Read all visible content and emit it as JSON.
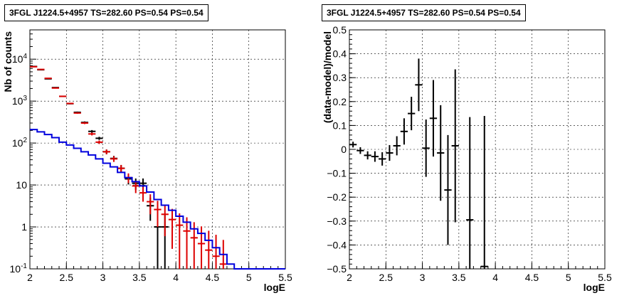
{
  "chart_data": [
    {
      "type": "line",
      "title": "3FGL J1224.5+4957 TS=282.60 PS=0.54 PS=0.54",
      "xlabel": "logE",
      "ylabel": "Nb of counts",
      "xlim": [
        2,
        5.5
      ],
      "ylim": [
        0.1,
        50000
      ],
      "yscale": "log",
      "grid": true,
      "xticks": [
        "2",
        "2.5",
        "3",
        "3.5",
        "4",
        "4.5",
        "5",
        "5.5"
      ],
      "yticks": [
        "10^-1",
        "1",
        "10",
        "10^2",
        "10^3",
        "10^4"
      ],
      "series": [
        {
          "color": "#000000",
          "style": "errorbar",
          "x": [
            2.05,
            2.15,
            2.25,
            2.35,
            2.45,
            2.55,
            2.65,
            2.75,
            2.85,
            2.95,
            3.05,
            3.15,
            3.25,
            3.35,
            3.45,
            3.55,
            3.65,
            3.75,
            3.85,
            3.95,
            4.05,
            4.15,
            4.25,
            4.35,
            4.45,
            4.55,
            4.65
          ],
          "y": [
            6700,
            5600,
            3400,
            2100,
            1300,
            870,
            540,
            310,
            190,
            130,
            62,
            43,
            25,
            14,
            11,
            11,
            3.2,
            1,
            1,
            0,
            0,
            0,
            0,
            0,
            0,
            0,
            0
          ],
          "yerr": [
            82,
            75,
            58,
            46,
            36,
            29,
            23,
            18,
            14,
            11,
            8,
            6.5,
            5,
            3.7,
            3.3,
            3.3,
            1.8,
            1,
            1,
            0,
            0,
            0,
            0,
            0,
            0,
            0,
            0
          ]
        },
        {
          "color": "#dd0000",
          "style": "errorbar",
          "x": [
            2.05,
            2.15,
            2.25,
            2.35,
            2.45,
            2.55,
            2.65,
            2.75,
            2.85,
            2.95,
            3.05,
            3.15,
            3.25,
            3.35,
            3.45,
            3.55,
            3.65,
            3.75,
            3.85,
            3.95,
            4.05,
            4.15,
            4.25,
            4.35,
            4.45,
            4.55,
            4.65
          ],
          "y": [
            6600,
            5700,
            3500,
            2050,
            1300,
            880,
            520,
            300,
            165,
            105,
            62,
            42,
            25,
            15,
            9.5,
            6.5,
            4,
            2.6,
            2,
            1.5,
            1.1,
            0.8,
            0.55,
            0.4,
            0.28,
            0.2,
            0.13
          ],
          "yerr": [
            81,
            75,
            59,
            45,
            36,
            30,
            23,
            17,
            13,
            10,
            8,
            6.5,
            5,
            3.9,
            3.1,
            2.5,
            2,
            1.6,
            1.4,
            1.2,
            1,
            0.9,
            0.75,
            0.63,
            0.53,
            0.45,
            0.36
          ]
        },
        {
          "color": "#0000dd",
          "style": "step",
          "edges": [
            2.0,
            2.1,
            2.2,
            2.3,
            2.4,
            2.5,
            2.6,
            2.7,
            2.8,
            2.9,
            3.0,
            3.1,
            3.2,
            3.3,
            3.4,
            3.5,
            3.6,
            3.7,
            3.8,
            3.9,
            4.0,
            4.1,
            4.2,
            4.3,
            4.4,
            4.5,
            4.6,
            4.7,
            4.8,
            4.9,
            5.0,
            5.1,
            5.2,
            5.3,
            5.4,
            5.5
          ],
          "values": [
            210,
            185,
            160,
            135,
            105,
            90,
            75,
            62,
            52,
            42,
            33,
            27,
            20,
            15,
            12,
            9.5,
            6.8,
            4.5,
            3.3,
            2.5,
            1.8,
            1.3,
            0.9,
            0.7,
            0.48,
            0.32,
            0.22,
            0.13,
            0.1,
            0.1,
            0.1,
            0.1,
            0.1,
            0.1,
            0.1
          ]
        }
      ]
    },
    {
      "type": "scatter",
      "title": "3FGL J1224.5+4957 TS=282.60 PS=0.54 PS=0.54",
      "xlabel": "logE",
      "ylabel": "(data-model)/model",
      "xlim": [
        2,
        5.5
      ],
      "ylim": [
        -0.5,
        0.5
      ],
      "grid": true,
      "xticks": [
        "2",
        "2.5",
        "3",
        "3.5",
        "4",
        "4.5",
        "5",
        "5.5"
      ],
      "yticks": [
        "-0.5",
        "-0.4",
        "-0.3",
        "-0.2",
        "-0.1",
        "0",
        "0.1",
        "0.2",
        "0.3",
        "0.4",
        "0.5"
      ],
      "series": [
        {
          "color": "#000000",
          "style": "errorbar",
          "x": [
            2.05,
            2.15,
            2.25,
            2.35,
            2.45,
            2.55,
            2.65,
            2.75,
            2.85,
            2.95,
            3.05,
            3.15,
            3.25,
            3.35,
            3.45,
            3.65,
            3.85
          ],
          "y": [
            0.02,
            -0.005,
            -0.025,
            -0.03,
            -0.04,
            -0.015,
            0.015,
            0.075,
            0.15,
            0.27,
            0.005,
            0.13,
            -0.015,
            -0.17,
            0.015,
            -0.295,
            -0.49
          ],
          "yerr": [
            0.012,
            0.014,
            0.017,
            0.022,
            0.028,
            0.033,
            0.04,
            0.055,
            0.07,
            0.11,
            0.12,
            0.16,
            0.2,
            0.23,
            0.32,
            0.43,
            0.63
          ]
        }
      ]
    }
  ]
}
